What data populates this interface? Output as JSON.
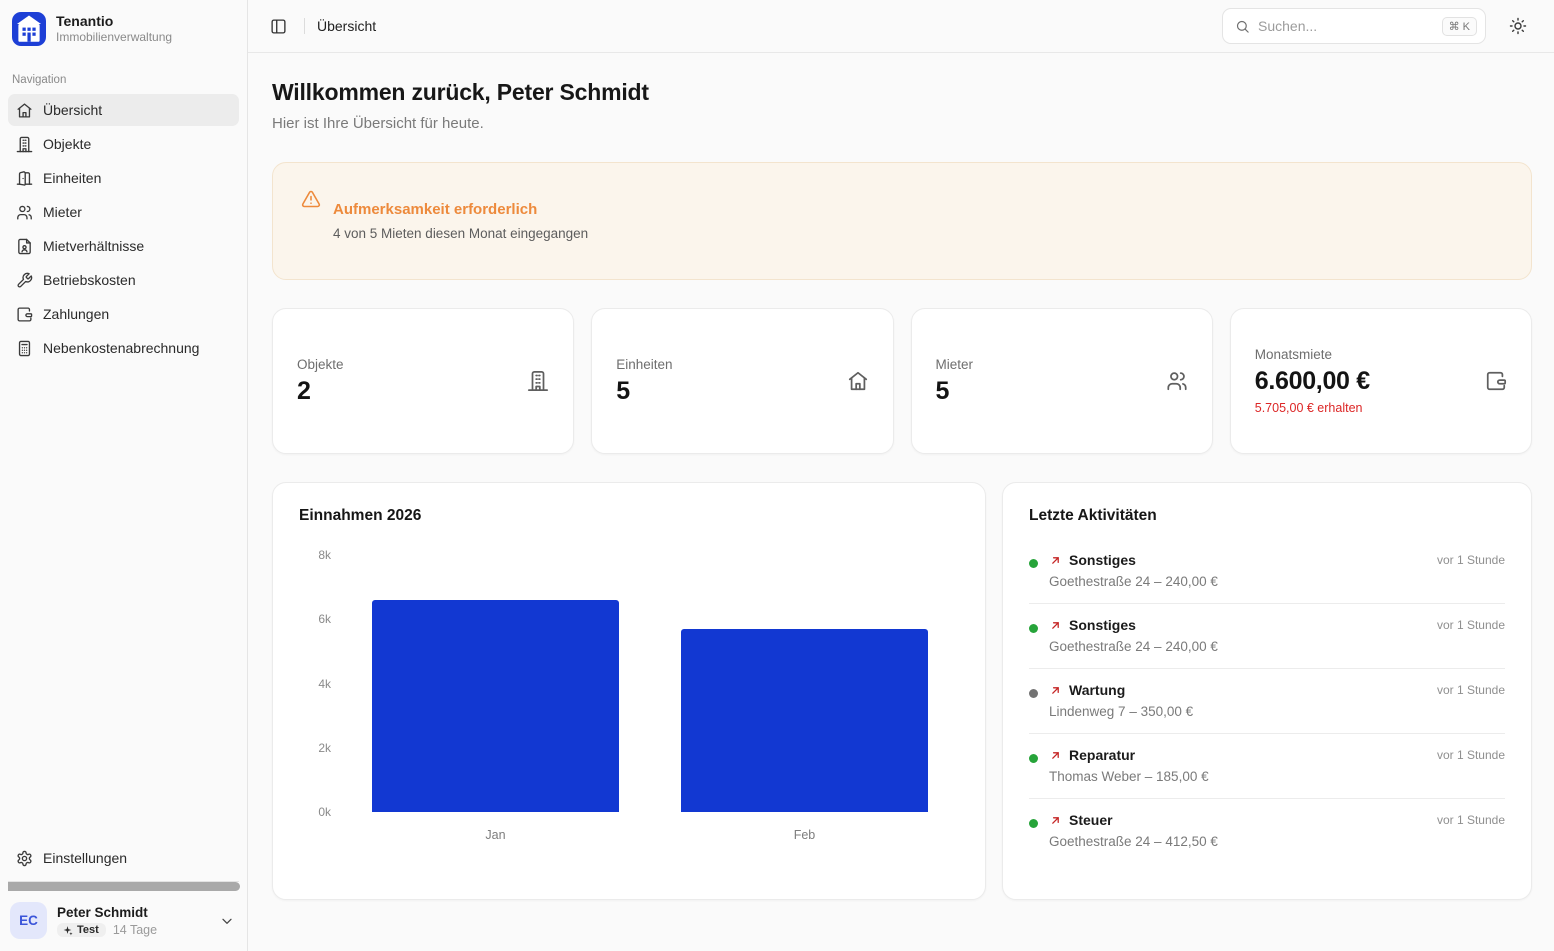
{
  "app": {
    "name": "Tenantio",
    "subtitle": "Immobilienverwaltung"
  },
  "colors": {
    "brand_blue": "#1d3fd6",
    "bar_blue": "#1238d2",
    "alert_orange": "#ed8a3c",
    "alert_bg": "#fbf5ec",
    "danger_red": "#dc2626",
    "status_green": "#27a43a",
    "status_gray": "#737373"
  },
  "sidebar": {
    "section_label": "Navigation",
    "items": [
      {
        "label": "Übersicht",
        "icon": "home",
        "active": true
      },
      {
        "label": "Objekte",
        "icon": "building",
        "active": false
      },
      {
        "label": "Einheiten",
        "icon": "door-open",
        "active": false
      },
      {
        "label": "Mieter",
        "icon": "users",
        "active": false
      },
      {
        "label": "Mietverhältnisse",
        "icon": "file-user",
        "active": false
      },
      {
        "label": "Betriebskosten",
        "icon": "wrench",
        "active": false
      },
      {
        "label": "Zahlungen",
        "icon": "wallet",
        "active": false
      },
      {
        "label": "Nebenkostenabrechnung",
        "icon": "calculator",
        "active": false
      }
    ],
    "settings_label": "Einstellungen",
    "user": {
      "initials": "EC",
      "name": "Peter Schmidt",
      "badge": "Test",
      "trial": "14 Tage"
    }
  },
  "header": {
    "breadcrumb": "Übersicht",
    "search_placeholder": "Suchen...",
    "search_shortcut": "⌘ K"
  },
  "main": {
    "title": "Willkommen zurück, Peter Schmidt",
    "subtitle": "Hier ist Ihre Übersicht für heute.",
    "alert": {
      "title": "Aufmerksamkeit erforderlich",
      "message": "4 von 5 Mieten diesen Monat eingegangen"
    },
    "stats": [
      {
        "label": "Objekte",
        "value": "2",
        "sub": "",
        "icon": "building"
      },
      {
        "label": "Einheiten",
        "value": "5",
        "sub": "",
        "icon": "home"
      },
      {
        "label": "Mieter",
        "value": "5",
        "sub": "",
        "icon": "users"
      },
      {
        "label": "Monatsmiete",
        "value": "6.600,00 €",
        "sub": "5.705,00 € erhalten",
        "icon": "wallet"
      }
    ],
    "activities": {
      "title": "Letzte Aktivitäten",
      "items": [
        {
          "title": "Sonstiges",
          "detail": "Goethestraße 24 – 240,00 €",
          "time": "vor 1 Stunde",
          "status": "green"
        },
        {
          "title": "Sonstiges",
          "detail": "Goethestraße 24 – 240,00 €",
          "time": "vor 1 Stunde",
          "status": "green"
        },
        {
          "title": "Wartung",
          "detail": "Lindenweg 7 – 350,00 €",
          "time": "vor 1 Stunde",
          "status": "gray"
        },
        {
          "title": "Reparatur",
          "detail": "Thomas Weber – 185,00 €",
          "time": "vor 1 Stunde",
          "status": "green"
        },
        {
          "title": "Steuer",
          "detail": "Goethestraße 24 – 412,50 €",
          "time": "vor 1 Stunde",
          "status": "green"
        }
      ]
    }
  },
  "chart_data": {
    "type": "bar",
    "title": "Einnahmen 2026",
    "categories": [
      "Jan",
      "Feb"
    ],
    "values": [
      6600,
      5705
    ],
    "y_ticks": [
      "8k",
      "6k",
      "4k",
      "2k",
      "0k"
    ],
    "ylim": [
      0,
      8000
    ],
    "xlabel": "",
    "ylabel": "",
    "grid": false,
    "legend": false,
    "bar_color": "#1238d2"
  }
}
